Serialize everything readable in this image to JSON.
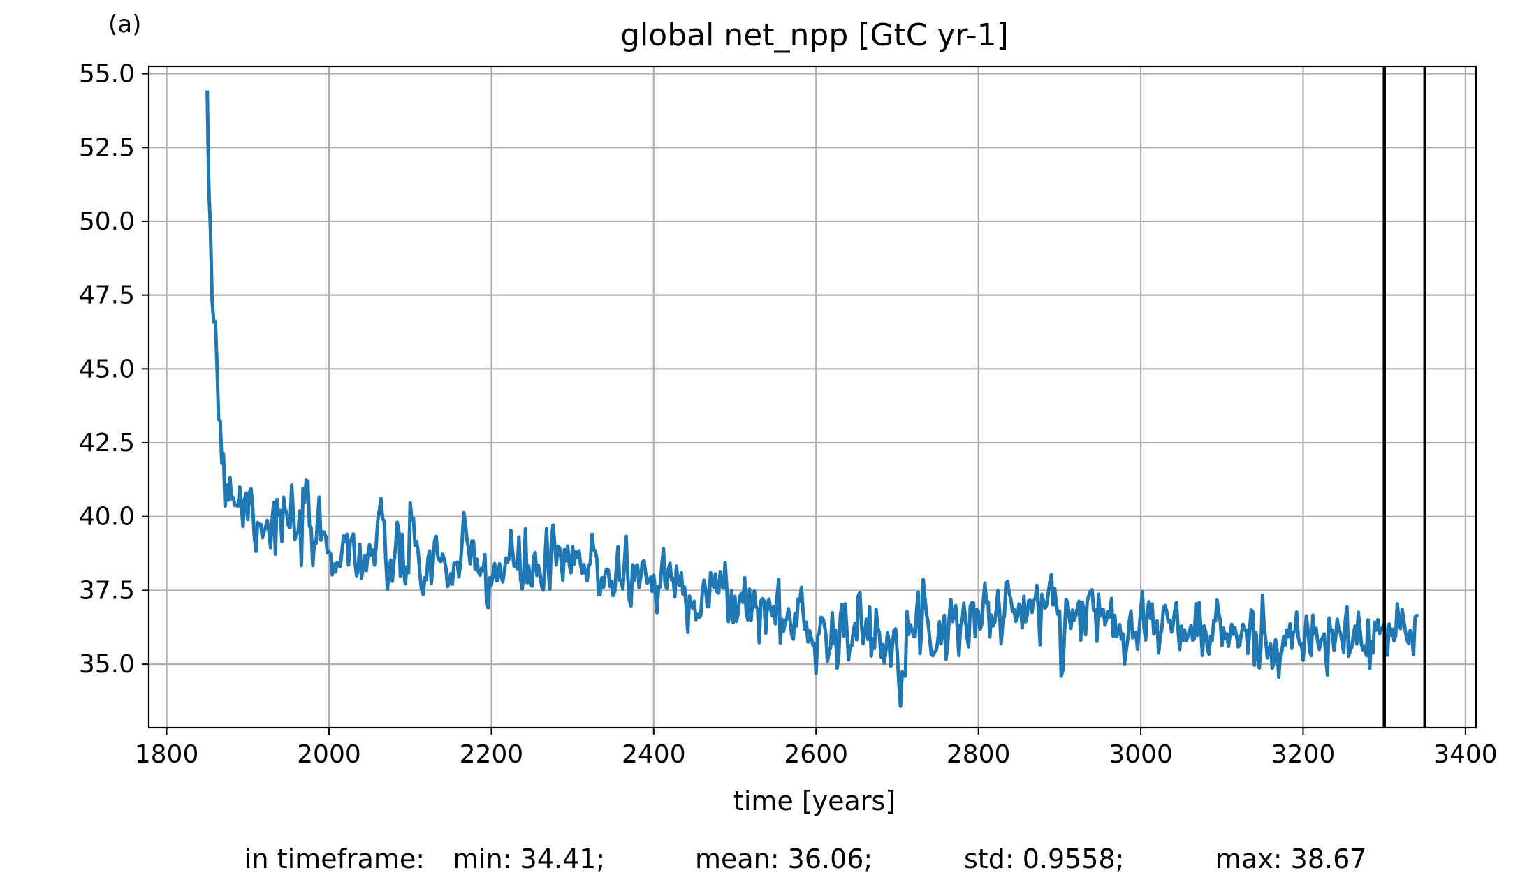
{
  "chart_data": {
    "type": "line",
    "panel_label": "(a)",
    "title": "global net_npp [GtC yr-1]",
    "xlabel": "time [years]",
    "ylabel": "",
    "xlim": [
      1778,
      3413
    ],
    "ylim": [
      32.85,
      55.25
    ],
    "xticks": [
      1800,
      2000,
      2200,
      2400,
      2600,
      2800,
      3000,
      3200,
      3400
    ],
    "yticks": [
      35.0,
      37.5,
      40.0,
      42.5,
      45.0,
      47.5,
      50.0,
      52.5,
      55.0
    ],
    "grid": true,
    "legend": "none",
    "series_color": "#1f77b4",
    "vlines_color": "#000000",
    "vlines": [
      3300,
      3350
    ],
    "series": [
      {
        "x_start": 1850,
        "x_end": 3342,
        "step": 2,
        "anchors": [
          [
            1850,
            54.1
          ],
          [
            1851,
            50.8
          ],
          [
            1853,
            51.0
          ],
          [
            1855,
            48.5
          ],
          [
            1857,
            46.2
          ],
          [
            1859,
            47.2
          ],
          [
            1861,
            46.3
          ],
          [
            1863,
            44.2
          ],
          [
            1865,
            43.0
          ],
          [
            1868,
            42.3
          ],
          [
            1872,
            42.1
          ],
          [
            1876,
            41.5
          ],
          [
            1880,
            41.2
          ],
          [
            1890,
            40.7
          ],
          [
            1900,
            40.4
          ],
          [
            1920,
            40.1
          ],
          [
            1940,
            39.7
          ],
          [
            1960,
            39.5
          ],
          [
            2000,
            39.1
          ],
          [
            2050,
            38.7
          ],
          [
            2100,
            38.5
          ],
          [
            2150,
            38.3
          ],
          [
            2200,
            38.2
          ],
          [
            2250,
            38.2
          ],
          [
            2300,
            38.3
          ],
          [
            2350,
            38.2
          ],
          [
            2400,
            37.9
          ],
          [
            2450,
            37.6
          ],
          [
            2500,
            37.2
          ],
          [
            2550,
            36.7
          ],
          [
            2600,
            36.3
          ],
          [
            2650,
            36.0
          ],
          [
            2700,
            36.1
          ],
          [
            2750,
            36.3
          ],
          [
            2800,
            36.7
          ],
          [
            2850,
            36.9
          ],
          [
            2900,
            36.9
          ],
          [
            2950,
            36.7
          ],
          [
            3000,
            36.5
          ],
          [
            3050,
            36.2
          ],
          [
            3100,
            36.0
          ],
          [
            3150,
            35.8
          ],
          [
            3200,
            35.8
          ],
          [
            3250,
            35.8
          ],
          [
            3300,
            35.9
          ],
          [
            3342,
            36.2
          ]
        ],
        "noise_std": [
          [
            1850,
            0.3
          ],
          [
            1870,
            0.9
          ],
          [
            1950,
            0.7
          ],
          [
            2300,
            0.65
          ],
          [
            2600,
            0.6
          ],
          [
            3000,
            0.55
          ],
          [
            3342,
            0.55
          ]
        ],
        "seed": 7
      }
    ]
  },
  "stats_line": {
    "prefix": "in timeframe:",
    "min": "min: 34.41;",
    "mean": "mean: 36.06;",
    "std": "std: 0.9558;",
    "max": "max: 38.67"
  }
}
